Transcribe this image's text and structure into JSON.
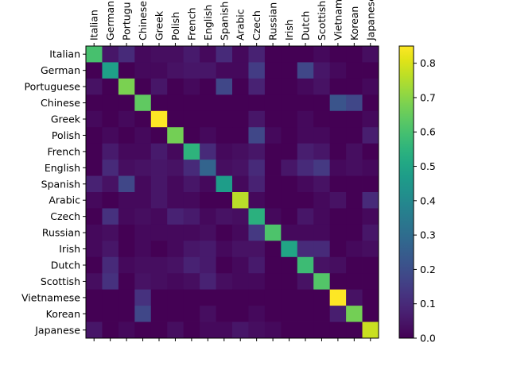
{
  "chart_data": {
    "type": "heatmap",
    "title": "",
    "xlabel": "",
    "ylabel": "",
    "labels": [
      "Italian",
      "German",
      "Portuguese",
      "Chinese",
      "Greek",
      "Polish",
      "French",
      "English",
      "Spanish",
      "Arabic",
      "Czech",
      "Russian",
      "Irish",
      "Dutch",
      "Scottish",
      "Vietnamese",
      "Korean",
      "Japanese"
    ],
    "x_tick_labels": [
      "Italian",
      "German",
      "Portugu",
      "Chinese",
      "Greek",
      "Polish",
      "French",
      "English",
      "Spanish",
      "Arabic",
      "Czech",
      "Russian",
      "Irish",
      "Dutch",
      "Scottish",
      "Vietnam",
      "Korean",
      "Japanese"
    ],
    "y_tick_labels": [
      "Italian",
      "German",
      "Portuguese",
      "Chinese",
      "Greek",
      "Polish",
      "French",
      "English",
      "Spanish",
      "Arabic",
      "Czech",
      "Russian",
      "Irish",
      "Dutch",
      "Scottish",
      "Vietnamese",
      "Korean",
      "Japanese"
    ],
    "colormap": "viridis",
    "colorbar": {
      "min": 0.0,
      "max": 0.85,
      "ticks": [
        "0.0",
        "0.1",
        "0.2",
        "0.3",
        "0.4",
        "0.5",
        "0.6",
        "0.7",
        "0.8"
      ]
    },
    "values": [
      [
        0.6,
        0.05,
        0.1,
        0.02,
        0.03,
        0.03,
        0.06,
        0.02,
        0.1,
        0.02,
        0.08,
        0.0,
        0.0,
        0.0,
        0.02,
        0.0,
        0.0,
        0.03
      ],
      [
        0.0,
        0.48,
        0.0,
        0.02,
        0.02,
        0.04,
        0.05,
        0.05,
        0.02,
        0.02,
        0.15,
        0.0,
        0.0,
        0.18,
        0.05,
        0.02,
        0.0,
        0.0
      ],
      [
        0.04,
        0.0,
        0.68,
        0.0,
        0.05,
        0.0,
        0.02,
        0.0,
        0.18,
        0.0,
        0.08,
        0.0,
        0.0,
        0.02,
        0.04,
        0.0,
        0.0,
        0.02
      ],
      [
        0.0,
        0.0,
        0.0,
        0.64,
        0.0,
        0.0,
        0.0,
        0.0,
        0.0,
        0.0,
        0.0,
        0.0,
        0.0,
        0.0,
        0.0,
        0.22,
        0.18,
        0.0
      ],
      [
        0.02,
        0.0,
        0.02,
        0.0,
        0.85,
        0.0,
        0.0,
        0.0,
        0.0,
        0.0,
        0.05,
        0.0,
        0.0,
        0.02,
        0.0,
        0.0,
        0.0,
        0.02
      ],
      [
        0.0,
        0.02,
        0.0,
        0.02,
        0.0,
        0.67,
        0.0,
        0.02,
        0.0,
        0.0,
        0.18,
        0.02,
        0.0,
        0.02,
        0.02,
        0.0,
        0.0,
        0.07
      ],
      [
        0.0,
        0.06,
        0.02,
        0.02,
        0.06,
        0.02,
        0.55,
        0.1,
        0.02,
        0.03,
        0.05,
        0.0,
        0.0,
        0.07,
        0.05,
        0.0,
        0.03,
        0.0
      ],
      [
        0.0,
        0.1,
        0.03,
        0.04,
        0.05,
        0.04,
        0.1,
        0.27,
        0.03,
        0.04,
        0.1,
        0.0,
        0.05,
        0.1,
        0.14,
        0.02,
        0.03,
        0.02
      ],
      [
        0.08,
        0.04,
        0.18,
        0.02,
        0.05,
        0.02,
        0.05,
        0.02,
        0.47,
        0.02,
        0.08,
        0.0,
        0.0,
        0.02,
        0.04,
        0.0,
        0.0,
        0.0
      ],
      [
        0.02,
        0.0,
        0.02,
        0.02,
        0.05,
        0.02,
        0.02,
        0.0,
        0.0,
        0.76,
        0.02,
        0.0,
        0.0,
        0.0,
        0.02,
        0.04,
        0.0,
        0.1
      ],
      [
        0.0,
        0.12,
        0.02,
        0.03,
        0.02,
        0.08,
        0.06,
        0.02,
        0.04,
        0.03,
        0.54,
        0.02,
        0.0,
        0.05,
        0.02,
        0.0,
        0.0,
        0.02
      ],
      [
        0.02,
        0.03,
        0.0,
        0.02,
        0.02,
        0.02,
        0.02,
        0.03,
        0.0,
        0.02,
        0.14,
        0.61,
        0.02,
        0.02,
        0.02,
        0.0,
        0.0,
        0.05
      ],
      [
        0.02,
        0.05,
        0.0,
        0.02,
        0.0,
        0.02,
        0.05,
        0.06,
        0.02,
        0.04,
        0.04,
        0.0,
        0.5,
        0.1,
        0.1,
        0.0,
        0.02,
        0.03
      ],
      [
        0.0,
        0.1,
        0.02,
        0.03,
        0.03,
        0.04,
        0.08,
        0.06,
        0.0,
        0.02,
        0.06,
        0.0,
        0.0,
        0.58,
        0.04,
        0.03,
        0.0,
        0.0
      ],
      [
        0.03,
        0.12,
        0.0,
        0.04,
        0.03,
        0.02,
        0.03,
        0.08,
        0.03,
        0.02,
        0.02,
        0.0,
        0.0,
        0.04,
        0.62,
        0.0,
        0.0,
        0.0
      ],
      [
        0.0,
        0.0,
        0.0,
        0.12,
        0.0,
        0.0,
        0.0,
        0.0,
        0.0,
        0.0,
        0.0,
        0.0,
        0.0,
        0.0,
        0.0,
        0.85,
        0.04,
        0.0
      ],
      [
        0.0,
        0.0,
        0.0,
        0.18,
        0.0,
        0.0,
        0.0,
        0.03,
        0.0,
        0.0,
        0.02,
        0.0,
        0.0,
        0.0,
        0.0,
        0.07,
        0.67,
        0.0
      ],
      [
        0.05,
        0.0,
        0.02,
        0.0,
        0.0,
        0.03,
        0.0,
        0.02,
        0.02,
        0.05,
        0.03,
        0.02,
        0.0,
        0.0,
        0.0,
        0.0,
        0.0,
        0.78
      ]
    ]
  }
}
